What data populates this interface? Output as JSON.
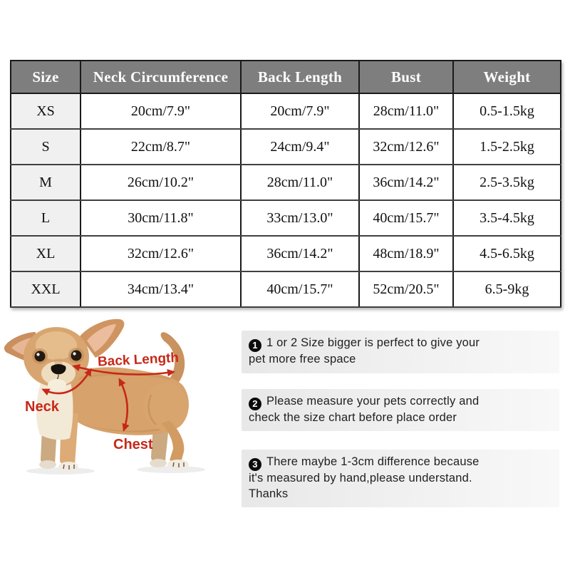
{
  "table": {
    "columns": [
      "Size",
      "Neck Circumference",
      "Back Length",
      "Bust",
      "Weight"
    ],
    "rows": [
      [
        "XS",
        "20cm/7.9\"",
        "20cm/7.9\"",
        "28cm/11.0\"",
        "0.5-1.5kg"
      ],
      [
        "S",
        "22cm/8.7\"",
        "24cm/9.4\"",
        "32cm/12.6\"",
        "1.5-2.5kg"
      ],
      [
        "M",
        "26cm/10.2\"",
        "28cm/11.0\"",
        "36cm/14.2\"",
        "2.5-3.5kg"
      ],
      [
        "L",
        "30cm/11.8\"",
        "33cm/13.0\"",
        "40cm/15.7\"",
        "3.5-4.5kg"
      ],
      [
        "XL",
        "32cm/12.6\"",
        "36cm/14.2\"",
        "48cm/18.9\"",
        "4.5-6.5kg"
      ],
      [
        "XXL",
        "34cm/13.4\"",
        "40cm/15.7\"",
        "52cm/20.5\"",
        "6.5-9kg"
      ]
    ]
  },
  "diagram": {
    "labels": {
      "back_length": "Back Length",
      "neck": "Neck",
      "chest": "Chest"
    },
    "annotation_color": "#c62818"
  },
  "notes": [
    {
      "num": "1",
      "text": "1 or 2 Size bigger is perfect to give your\npet more free space"
    },
    {
      "num": "2",
      "text": "Please measure your pets correctly and\ncheck the size chart before place order"
    },
    {
      "num": "3",
      "text": "There maybe 1-3cm difference because\nit's measured by hand,please understand.\nThanks"
    }
  ],
  "colors": {
    "header_bg": "#7e7e7e",
    "header_text": "#ffffff",
    "size_column_bg": "#f0f0f0",
    "note_bg": "#ececec",
    "annotation_red": "#c62818"
  }
}
